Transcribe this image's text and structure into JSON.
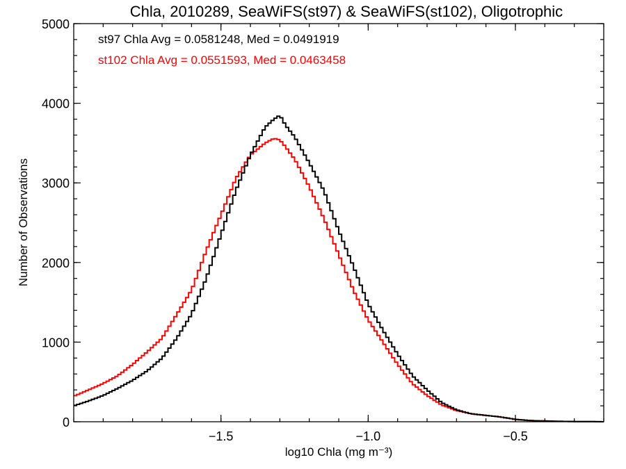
{
  "chart_data": {
    "type": "line",
    "title": "Chla, 2010289, SeaWiFS(st97) & SeaWiFS(st102), Oligotrophic",
    "xlabel": "log10 Chla (mg m⁻³)",
    "ylabel": "Number of Observations",
    "xlim": [
      -2.0,
      -0.2
    ],
    "ylim": [
      0,
      5000
    ],
    "x_ticks": [
      -1.5,
      -1.0,
      -0.5
    ],
    "x_tick_labels": [
      "−1.5",
      "−1.0",
      "−0.5"
    ],
    "y_ticks": [
      0,
      1000,
      2000,
      3000,
      4000,
      5000
    ],
    "y_tick_labels": [
      "0",
      "1000",
      "2000",
      "3000",
      "4000",
      "5000"
    ],
    "grid": false,
    "step_style": "histogram",
    "series": [
      {
        "color": "#000000",
        "x": [
          -2.0,
          -1.95,
          -1.9,
          -1.85,
          -1.8,
          -1.75,
          -1.7,
          -1.65,
          -1.6,
          -1.55,
          -1.5,
          -1.45,
          -1.4,
          -1.35,
          -1.32,
          -1.3,
          -1.28,
          -1.25,
          -1.2,
          -1.15,
          -1.1,
          -1.05,
          -1.0,
          -0.95,
          -0.9,
          -0.85,
          -0.8,
          -0.75,
          -0.7,
          -0.65,
          -0.6,
          -0.55,
          -0.5,
          -0.45,
          -0.4,
          -0.35,
          -0.3,
          -0.25,
          -0.2
        ],
        "y": [
          200,
          260,
          330,
          420,
          520,
          640,
          800,
          1050,
          1350,
          1800,
          2350,
          2900,
          3350,
          3700,
          3800,
          3850,
          3720,
          3580,
          3250,
          2900,
          2400,
          1950,
          1480,
          1150,
          850,
          580,
          400,
          240,
          150,
          100,
          80,
          60,
          30,
          15,
          10,
          5,
          3,
          2,
          0
        ]
      },
      {
        "color": "#ff0000",
        "x": [
          -2.0,
          -1.95,
          -1.9,
          -1.85,
          -1.8,
          -1.75,
          -1.7,
          -1.65,
          -1.6,
          -1.55,
          -1.5,
          -1.45,
          -1.4,
          -1.35,
          -1.32,
          -1.3,
          -1.28,
          -1.25,
          -1.2,
          -1.15,
          -1.1,
          -1.05,
          -1.0,
          -0.95,
          -0.9,
          -0.85,
          -0.8,
          -0.75,
          -0.7,
          -0.65,
          -0.6,
          -0.55,
          -0.5,
          -0.45,
          -0.4,
          -0.35,
          -0.3,
          -0.25,
          -0.2
        ],
        "y": [
          320,
          400,
          480,
          580,
          720,
          880,
          1050,
          1350,
          1650,
          2150,
          2600,
          3050,
          3350,
          3500,
          3560,
          3540,
          3450,
          3300,
          2950,
          2550,
          2100,
          1650,
          1280,
          1000,
          720,
          480,
          330,
          210,
          140,
          100,
          80,
          60,
          30,
          15,
          10,
          5,
          3,
          2,
          0
        ]
      }
    ],
    "annotations": [
      {
        "text": "st97 Chla Avg = 0.0581248, Med = 0.0491919",
        "color": "#000000"
      },
      {
        "text": "st102 Chla Avg = 0.0551593, Med = 0.0463458",
        "color": "#ff0000"
      }
    ]
  }
}
